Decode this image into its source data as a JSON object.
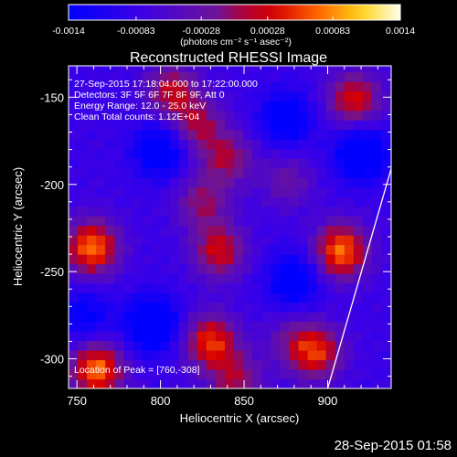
{
  "chart_data": {
    "type": "heatmap",
    "title": "Reconstructed RHESSI Image",
    "xlabel": "Heliocentric X (arcsec)",
    "ylabel": "Heliocentric Y (arcsec)",
    "xlim": [
      745,
      938
    ],
    "ylim": [
      -317,
      -132
    ],
    "x_ticks": [
      {
        "value": 750,
        "label": "750"
      },
      {
        "value": 800,
        "label": "800"
      },
      {
        "value": 850,
        "label": "850"
      },
      {
        "value": 900,
        "label": "900"
      }
    ],
    "y_ticks": [
      {
        "value": -150,
        "label": "-150"
      },
      {
        "value": -200,
        "label": "-200"
      },
      {
        "value": -250,
        "label": "-250"
      },
      {
        "value": -300,
        "label": "-300"
      }
    ],
    "colorbar": {
      "range": [
        -0.0014,
        0.0014
      ],
      "tick_values": [
        -0.0014,
        -0.00083,
        -0.00028,
        0.00028,
        0.00083,
        0.0014
      ],
      "tick_labels": [
        "-0.0014",
        "-0.00083",
        "-0.00028",
        "0.00028",
        "0.00083",
        "0.0014"
      ],
      "unit_label": "(photons cm⁻² s⁻¹ asec⁻²)"
    },
    "annotations": [
      "27-Sep-2015 17:18:04.000 to 17:22:00.000",
      "Detectors: 3F 5F 6F 7F 8F 9F, Att 0",
      "Energy Range: 12.0 - 25.0 keV",
      "Clean     Total counts: 1.12E+04",
      "Location of Peak = [760,-308]"
    ],
    "limb_line": {
      "x": [
        900,
        938
      ],
      "y": [
        -317,
        -191
      ]
    },
    "sources": [
      {
        "x": 759,
        "y": -236,
        "amp": 1.0
      },
      {
        "x": 762,
        "y": -306,
        "amp": 1.0
      },
      {
        "x": 908,
        "y": -238,
        "amp": 1.0
      },
      {
        "x": 916,
        "y": -151,
        "amp": 0.75
      },
      {
        "x": 807,
        "y": -146,
        "amp": 0.65
      },
      {
        "x": 822,
        "y": -166,
        "amp": 0.55
      },
      {
        "x": 840,
        "y": -185,
        "amp": 0.55
      },
      {
        "x": 825,
        "y": -210,
        "amp": 0.5
      },
      {
        "x": 835,
        "y": -238,
        "amp": 0.7
      },
      {
        "x": 830,
        "y": -290,
        "amp": 0.85
      },
      {
        "x": 845,
        "y": -312,
        "amp": 0.55
      },
      {
        "x": 876,
        "y": -198,
        "amp": 0.35
      },
      {
        "x": 878,
        "y": -289,
        "amp": 0.3
      },
      {
        "x": 893,
        "y": -296,
        "amp": 0.8
      },
      {
        "x": 800,
        "y": -180,
        "amp": -0.6
      },
      {
        "x": 875,
        "y": -162,
        "amp": -0.55
      },
      {
        "x": 920,
        "y": -182,
        "amp": -0.7
      },
      {
        "x": 795,
        "y": -280,
        "amp": -0.75
      },
      {
        "x": 880,
        "y": -255,
        "amp": -0.55
      },
      {
        "x": 755,
        "y": -275,
        "amp": -0.4
      }
    ]
  },
  "footer": {
    "timestamp": "28-Sep-2015 01:58"
  }
}
